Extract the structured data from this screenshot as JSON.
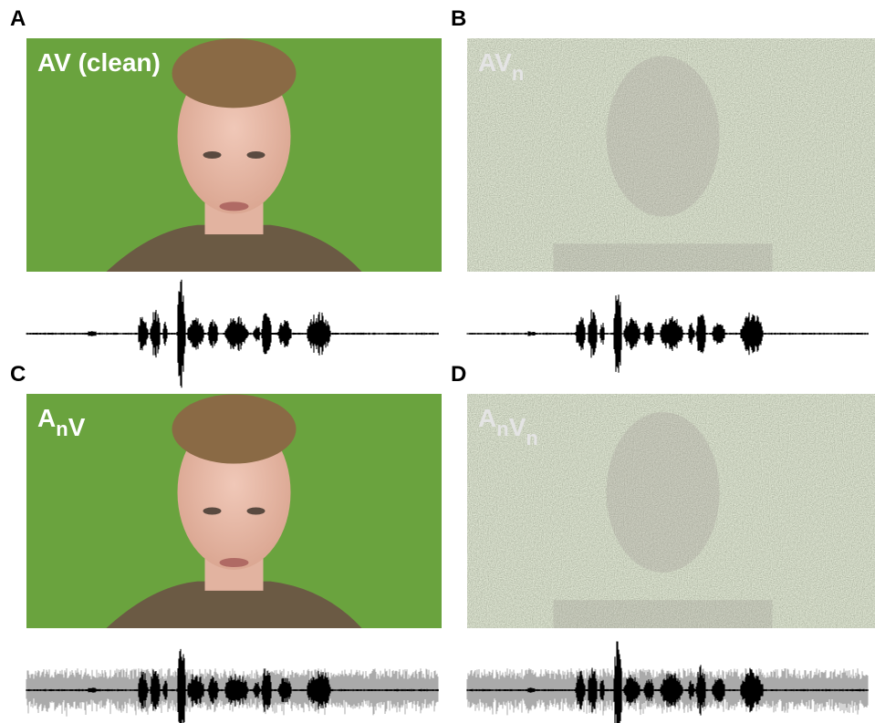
{
  "panels": [
    {
      "letter": "A",
      "label": [
        {
          "text": "AV (clean)"
        }
      ]
    },
    {
      "letter": "B",
      "label": [
        {
          "text": "AV",
          "sub": "n"
        }
      ]
    },
    {
      "letter": "C",
      "label": [
        {
          "text": "A",
          "sub": "n"
        },
        {
          "text": "V"
        }
      ]
    },
    {
      "letter": "D",
      "label": [
        {
          "text": "A",
          "sub": "n"
        },
        {
          "text": "V",
          "sub": "n"
        }
      ]
    }
  ]
}
